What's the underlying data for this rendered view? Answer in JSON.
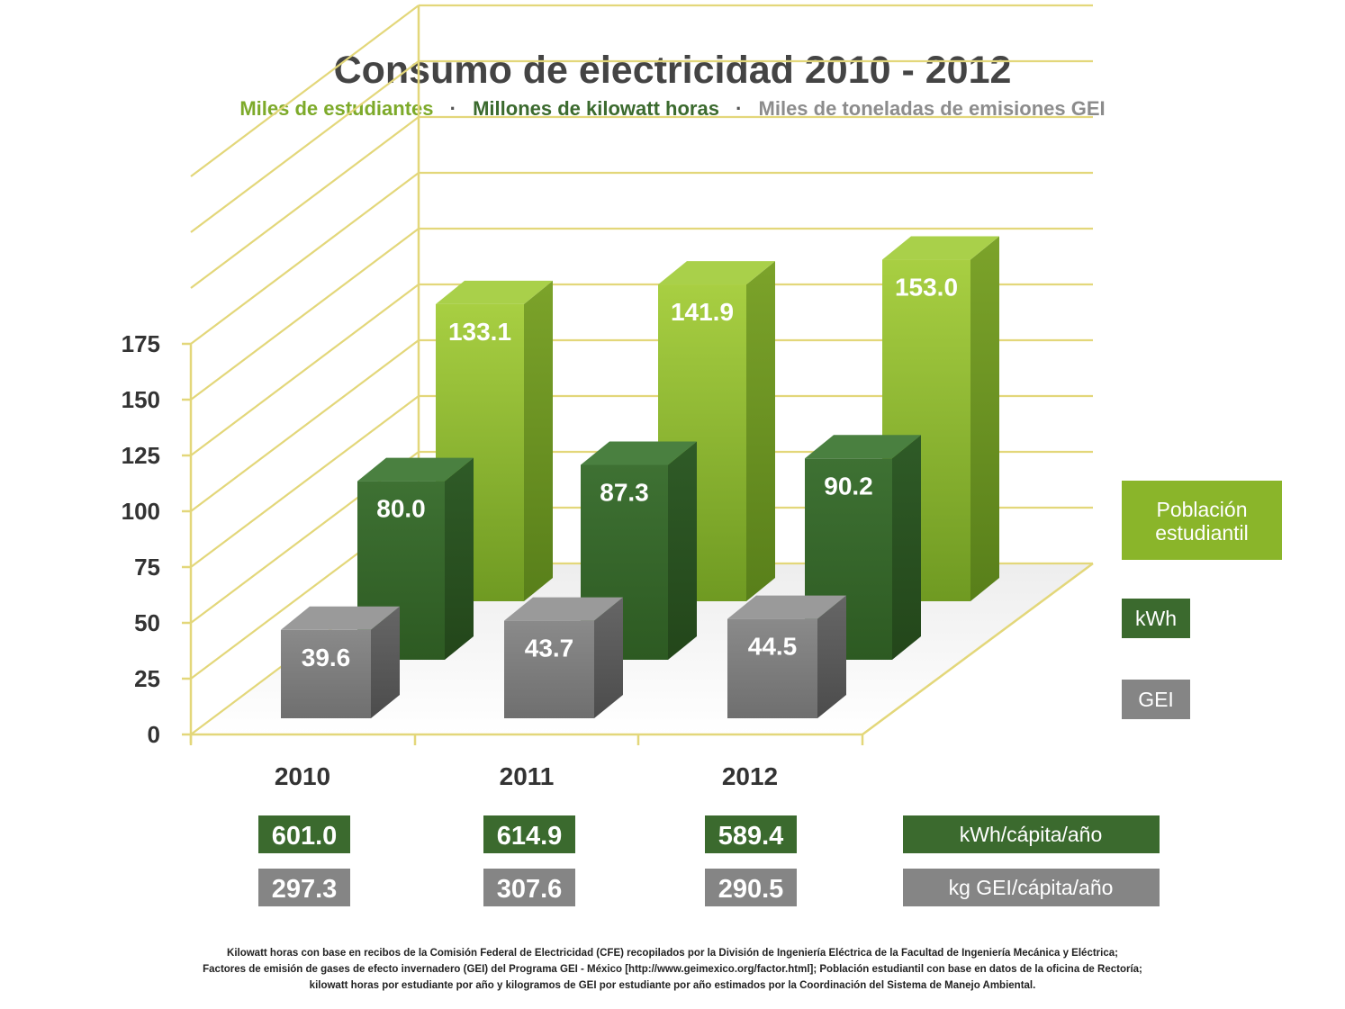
{
  "chart_data": {
    "type": "bar",
    "title": "Consumo de electricidad 2010 - 2012",
    "subtitle_parts": [
      "Miles de estudiantes",
      "·",
      "Millones de kilowatt horas",
      "·",
      "Miles de toneladas de emisiones GEI"
    ],
    "categories": [
      "2010",
      "2011",
      "2012"
    ],
    "ylim": [
      0,
      175
    ],
    "yticks": [
      "0",
      "25",
      "50",
      "75",
      "100",
      "125",
      "150",
      "175"
    ],
    "ytick_values": [
      0,
      25,
      50,
      75,
      100,
      125,
      150,
      175
    ],
    "series": [
      {
        "name": "Población estudiantil",
        "values": [
          133.1,
          141.9,
          153.0
        ],
        "labels": [
          "133.1",
          "141.9",
          "153.0"
        ],
        "color": "#8ab52a"
      },
      {
        "name": "kWh",
        "values": [
          80.0,
          87.3,
          90.2
        ],
        "labels": [
          "80.0",
          "87.3",
          "90.2"
        ],
        "color": "#3b6a2e"
      },
      {
        "name": "GEI",
        "values": [
          39.6,
          43.7,
          44.5
        ],
        "labels": [
          "39.6",
          "43.7",
          "44.5"
        ],
        "color": "#7f7f7f"
      }
    ],
    "legend_lines": [
      [
        "Población",
        "estudiantil"
      ],
      [
        "kWh"
      ],
      [
        "GEI"
      ]
    ],
    "per_capita": [
      {
        "name": "kWh/cápita/año",
        "values": [
          "601.0",
          "614.9",
          "589.4"
        ],
        "color": "#3b6a2e"
      },
      {
        "name": "kg GEI/cápita/año",
        "values": [
          "297.3",
          "307.6",
          "290.5"
        ],
        "color": "#858585"
      }
    ],
    "footnote": [
      "Kilowatt horas con base en recibos de la Comisión Federal de Electricidad (CFE) recopilados por la División de Ingeniería Eléctrica de la Facultad de Ingeniería Mecánica y Eléctrica;",
      "Factores de emisión de gases de efecto invernadero (GEI) del Programa GEI - México [http://www.geimexico.org/factor.html]; Población estudiantil con base en datos de la oficina de Rectoría;",
      "kilowatt horas por estudiante por año y kilogramos de GEI por estudiante por año estimados por la Coordinación del Sistema de Manejo Ambiental."
    ],
    "colors": {
      "grid": "#e3d77a",
      "title": "#444444",
      "sub_green": "#7daa2a",
      "sub_dark": "#3b6a2e",
      "sub_gray": "#8c8c8c"
    },
    "grid": true
  }
}
